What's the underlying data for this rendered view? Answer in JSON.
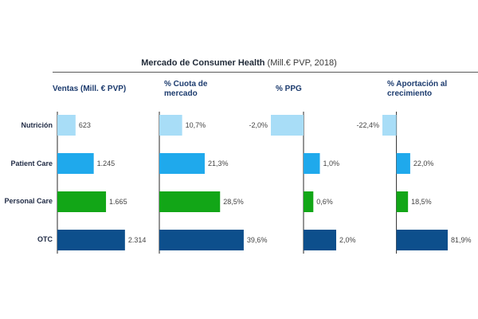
{
  "title": "Mercado de Consumer Health",
  "subtitle": "(Mill.€ PVP, 2018)",
  "colors": {
    "nutricion": "#a8ddf7",
    "patient_care": "#1fa9ec",
    "personal_care": "#12a617",
    "otc": "#0d4f8c",
    "axis": "#2a2a2a",
    "title_text": "#1c3b6e"
  },
  "chart_data": {
    "type": "bar",
    "orientation": "horizontal",
    "categories": [
      "Nutrición",
      "Patient Care",
      "Personal Care",
      "OTC"
    ],
    "panels": [
      {
        "title": "Ventas (Mill. € PVP)",
        "values": [
          623,
          1245,
          1665,
          2314
        ],
        "labels": [
          "623",
          "1.245",
          "1.665",
          "2.314"
        ],
        "xlim": [
          0,
          2400
        ]
      },
      {
        "title": "% Cuota de mercado",
        "values": [
          10.7,
          21.3,
          28.5,
          39.6
        ],
        "labels": [
          "10,7%",
          "21,3%",
          "28,5%",
          "39,6%"
        ],
        "xlim": [
          0,
          40
        ]
      },
      {
        "title": "% PPG",
        "values": [
          -2.0,
          1.0,
          0.6,
          2.0
        ],
        "labels": [
          "-2,0%",
          "1,0%",
          "0,6%",
          "2,0%"
        ],
        "xlim": [
          -2,
          2
        ]
      },
      {
        "title": "% Aportación al crecimiento",
        "values": [
          -22.4,
          22.0,
          18.5,
          81.9
        ],
        "labels": [
          "-22,4%",
          "22,0%",
          "18,5%",
          "81,9%"
        ],
        "xlim": [
          -22.4,
          81.9
        ]
      }
    ]
  }
}
